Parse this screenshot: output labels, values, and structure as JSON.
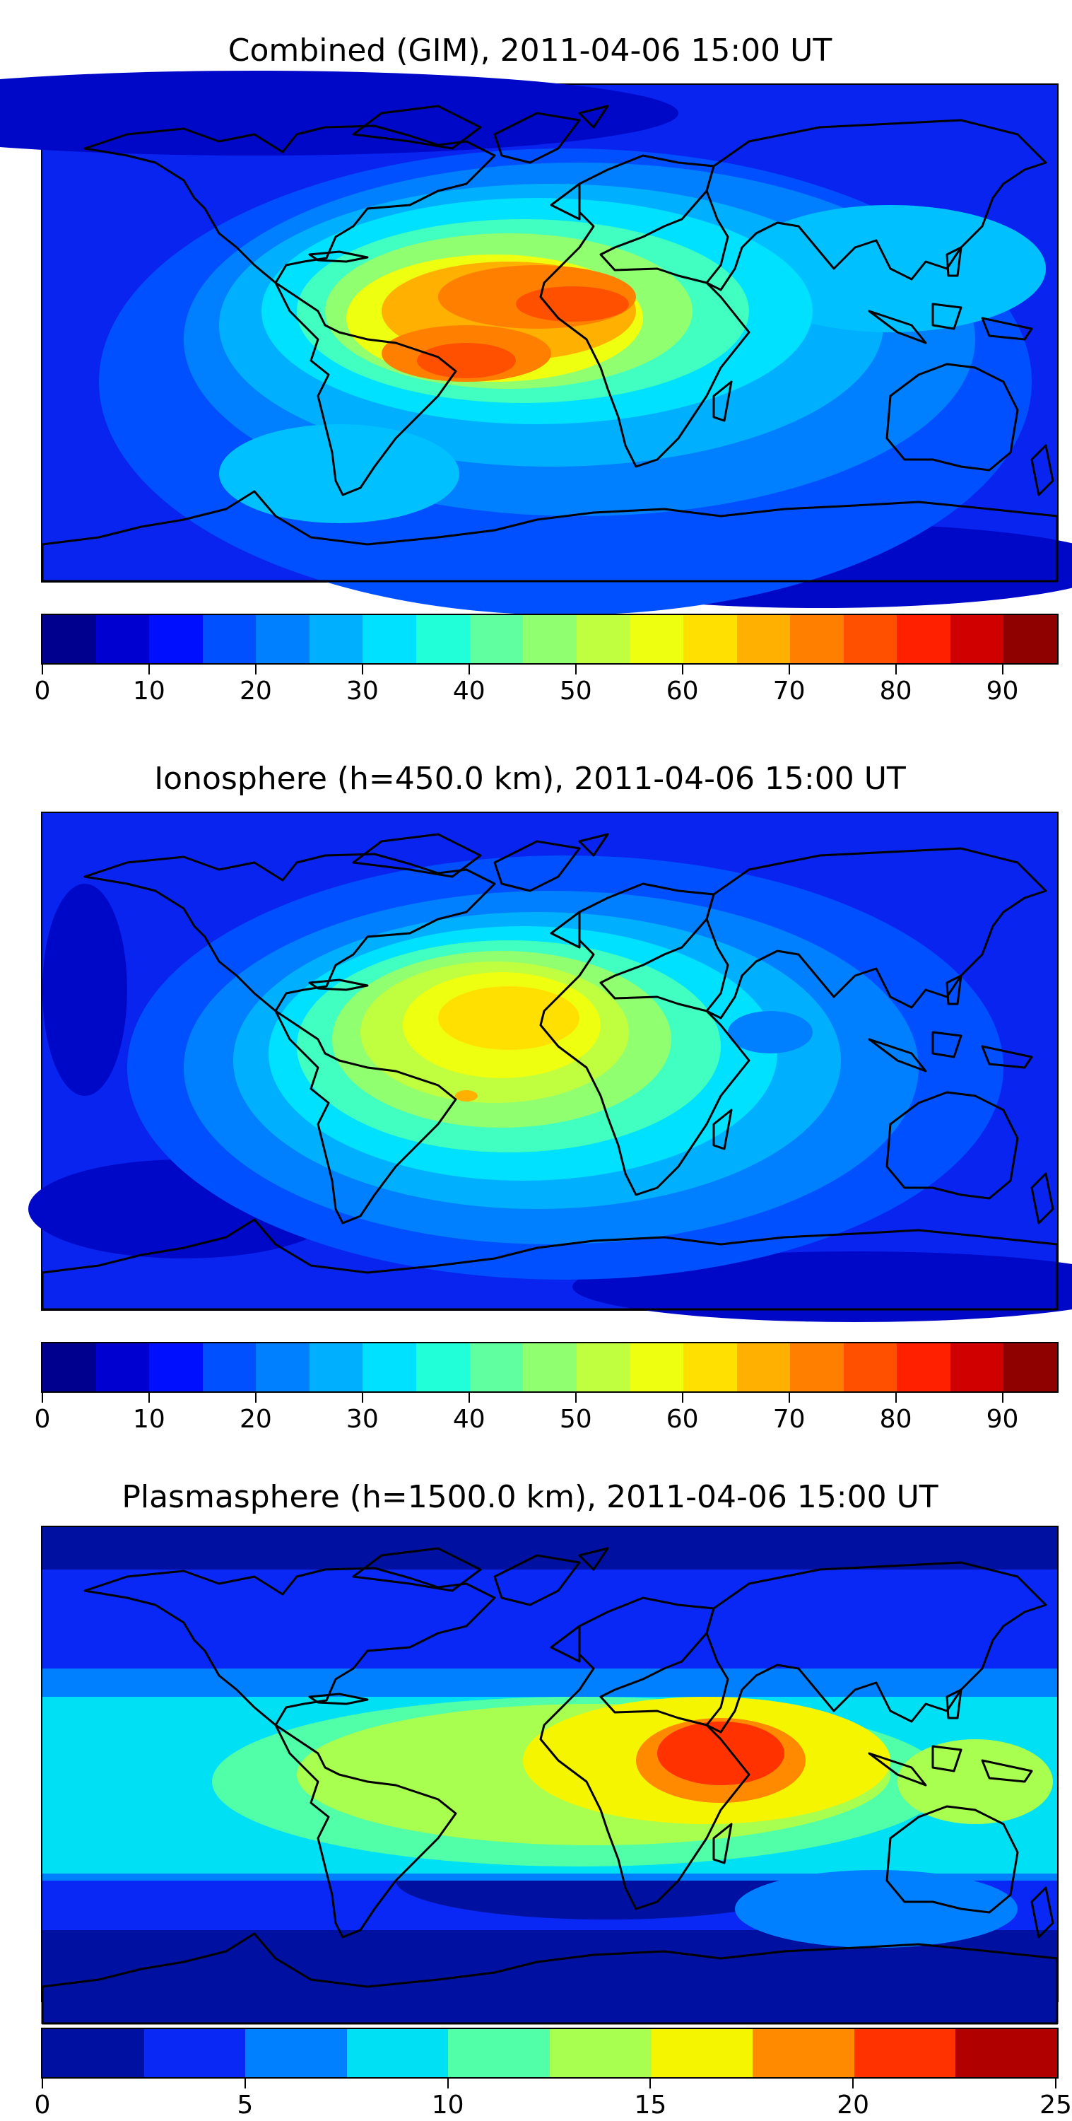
{
  "panels": [
    {
      "title": "Combined (GIM), 2011-04-06 15:00 UT",
      "colorbar": {
        "colors": [
          "#00008f",
          "#0000d0",
          "#0010ff",
          "#0050ff",
          "#0080ff",
          "#00b0ff",
          "#00e0ff",
          "#20ffd8",
          "#60ffa0",
          "#90ff70",
          "#c0ff40",
          "#eeff10",
          "#ffe000",
          "#ffb000",
          "#ff8000",
          "#ff5000",
          "#ff2000",
          "#d00000",
          "#8f0000"
        ],
        "ticks": [
          "0",
          "10",
          "20",
          "30",
          "40",
          "50",
          "60",
          "70",
          "80",
          "90"
        ],
        "tick_values": [
          0,
          10,
          20,
          30,
          40,
          50,
          60,
          70,
          80,
          90
        ],
        "vmin": 0,
        "vmax": 95
      }
    },
    {
      "title": "Ionosphere  (h=450.0 km), 2011-04-06 15:00 UT",
      "colorbar": {
        "colors": [
          "#00008f",
          "#0000d0",
          "#0010ff",
          "#0050ff",
          "#0080ff",
          "#00b0ff",
          "#00e0ff",
          "#20ffd8",
          "#60ffa0",
          "#90ff70",
          "#c0ff40",
          "#eeff10",
          "#ffe000",
          "#ffb000",
          "#ff8000",
          "#ff5000",
          "#ff2000",
          "#d00000",
          "#8f0000"
        ],
        "ticks": [
          "0",
          "10",
          "20",
          "30",
          "40",
          "50",
          "60",
          "70",
          "80",
          "90"
        ],
        "tick_values": [
          0,
          10,
          20,
          30,
          40,
          50,
          60,
          70,
          80,
          90
        ],
        "vmin": 0,
        "vmax": 95
      }
    },
    {
      "title": "Plasmasphere (h=1500.0 km), 2011-04-06 15:00 UT",
      "colorbar": {
        "colors": [
          "#0010a0",
          "#0a28f5",
          "#0080ff",
          "#00e0f5",
          "#50ffa8",
          "#a8ff50",
          "#f5f500",
          "#ff8a00",
          "#ff3200",
          "#b00000"
        ],
        "ticks": [
          "0",
          "5",
          "10",
          "15",
          "20",
          "25"
        ],
        "tick_values": [
          0,
          5,
          10,
          15,
          20,
          25
        ],
        "vmin": 0,
        "vmax": 25
      }
    }
  ]
}
